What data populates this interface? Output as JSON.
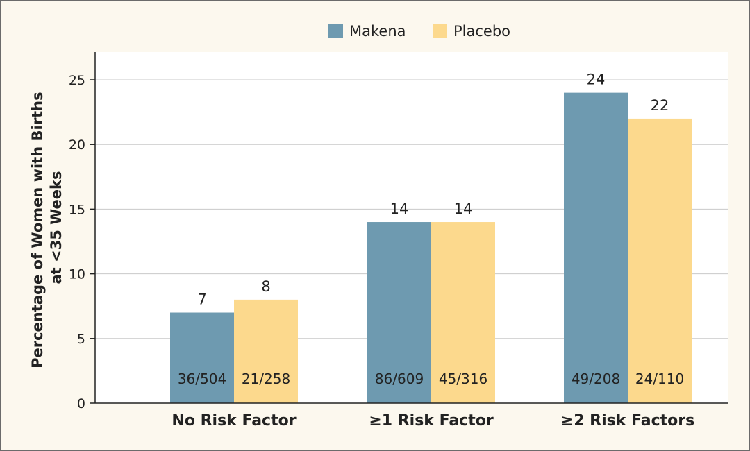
{
  "chart_data": {
    "type": "bar",
    "categories": [
      "No Risk Factor",
      "≥1 Risk Factor",
      "≥2 Risk Factors"
    ],
    "series": [
      {
        "name": "Makena",
        "values": [
          7,
          14,
          24
        ],
        "counts": [
          "36/504",
          "86/609",
          "49/208"
        ]
      },
      {
        "name": "Placebo",
        "values": [
          8,
          14,
          22
        ],
        "counts": [
          "21/258",
          "45/316",
          "24/110"
        ]
      }
    ],
    "ylabel": [
      "Percentage of Women with Births",
      "at <35 Weeks"
    ],
    "xlabel": "",
    "ylim": [
      0,
      26.5
    ],
    "yticks": [
      0,
      5,
      10,
      15,
      20,
      25
    ],
    "grid": true,
    "legend_position": "top-center",
    "colors": {
      "Makena": "#6e9ab0",
      "Placebo": "#fcd98d",
      "plot_bg": "#ffffff",
      "frame_bg": "#fcf8ee"
    }
  }
}
